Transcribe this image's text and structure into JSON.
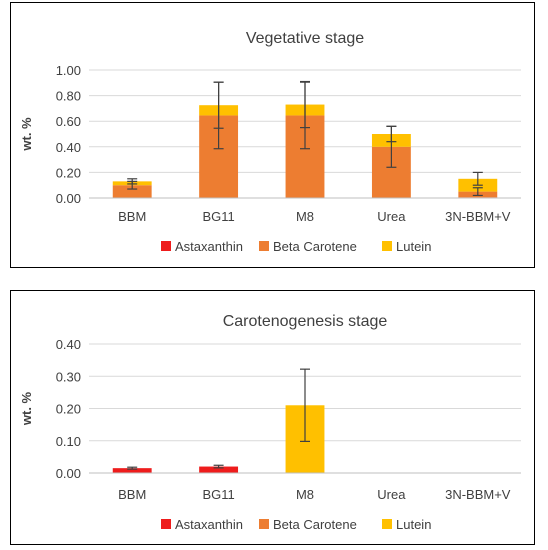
{
  "colors": {
    "astaxanthin": "#ee1c1c",
    "beta_carotene": "#ed7d31",
    "lutein": "#ffc000",
    "axis": "#bfbfbf",
    "grid": "#d9d9d9",
    "text": "#404040",
    "errorbar": "#404040"
  },
  "chart_data": [
    {
      "type": "bar",
      "stacked": true,
      "title": "Vegetative stage",
      "xlabel": "",
      "ylabel": "wt. %",
      "ylim": [
        0,
        1.0
      ],
      "yticks": [
        "0.00",
        "0.20",
        "0.40",
        "0.60",
        "0.80",
        "1.00"
      ],
      "categories": [
        "BBM",
        "BG11",
        "M8",
        "Urea",
        "3N-BBM+V"
      ],
      "grid": true,
      "legend_position": "bottom",
      "series": [
        {
          "name": "Astaxanthin",
          "color": "#ee1c1c",
          "values": [
            0,
            0,
            0,
            0,
            0.005
          ],
          "errors": [
            0,
            0,
            0,
            0,
            0
          ]
        },
        {
          "name": "Beta Carotene",
          "color": "#ed7d31",
          "values": [
            0.1,
            0.645,
            0.645,
            0.4,
            0.045
          ],
          "errors": [
            0.03,
            0.26,
            0.26,
            0.16,
            0.03
          ]
        },
        {
          "name": "Lutein",
          "color": "#ffc000",
          "values": [
            0.03,
            0.08,
            0.085,
            0.1,
            0.1
          ],
          "errors": [
            0.02,
            0.18,
            0.18,
            0.06,
            0.05
          ]
        }
      ]
    },
    {
      "type": "bar",
      "stacked": true,
      "title": "Carotenogenesis stage",
      "xlabel": "",
      "ylabel": "wt. %",
      "ylim": [
        0,
        0.4
      ],
      "yticks": [
        "0.00",
        "0.10",
        "0.20",
        "0.30",
        "0.40"
      ],
      "categories": [
        "BBM",
        "BG11",
        "M8",
        "Urea",
        "3N-BBM+V"
      ],
      "grid": true,
      "legend_position": "bottom",
      "series": [
        {
          "name": "Astaxanthin",
          "color": "#ee1c1c",
          "values": [
            0.015,
            0.02,
            0,
            0,
            0
          ],
          "errors": [
            0.003,
            0.004,
            0,
            0,
            0
          ]
        },
        {
          "name": "Beta Carotene",
          "color": "#ed7d31",
          "values": [
            0,
            0,
            0,
            0,
            0
          ],
          "errors": [
            0,
            0,
            0,
            0,
            0
          ]
        },
        {
          "name": "Lutein",
          "color": "#ffc000",
          "values": [
            0,
            0,
            0.21,
            0,
            0
          ],
          "errors": [
            0,
            0,
            0.112,
            0,
            0
          ]
        }
      ]
    }
  ]
}
